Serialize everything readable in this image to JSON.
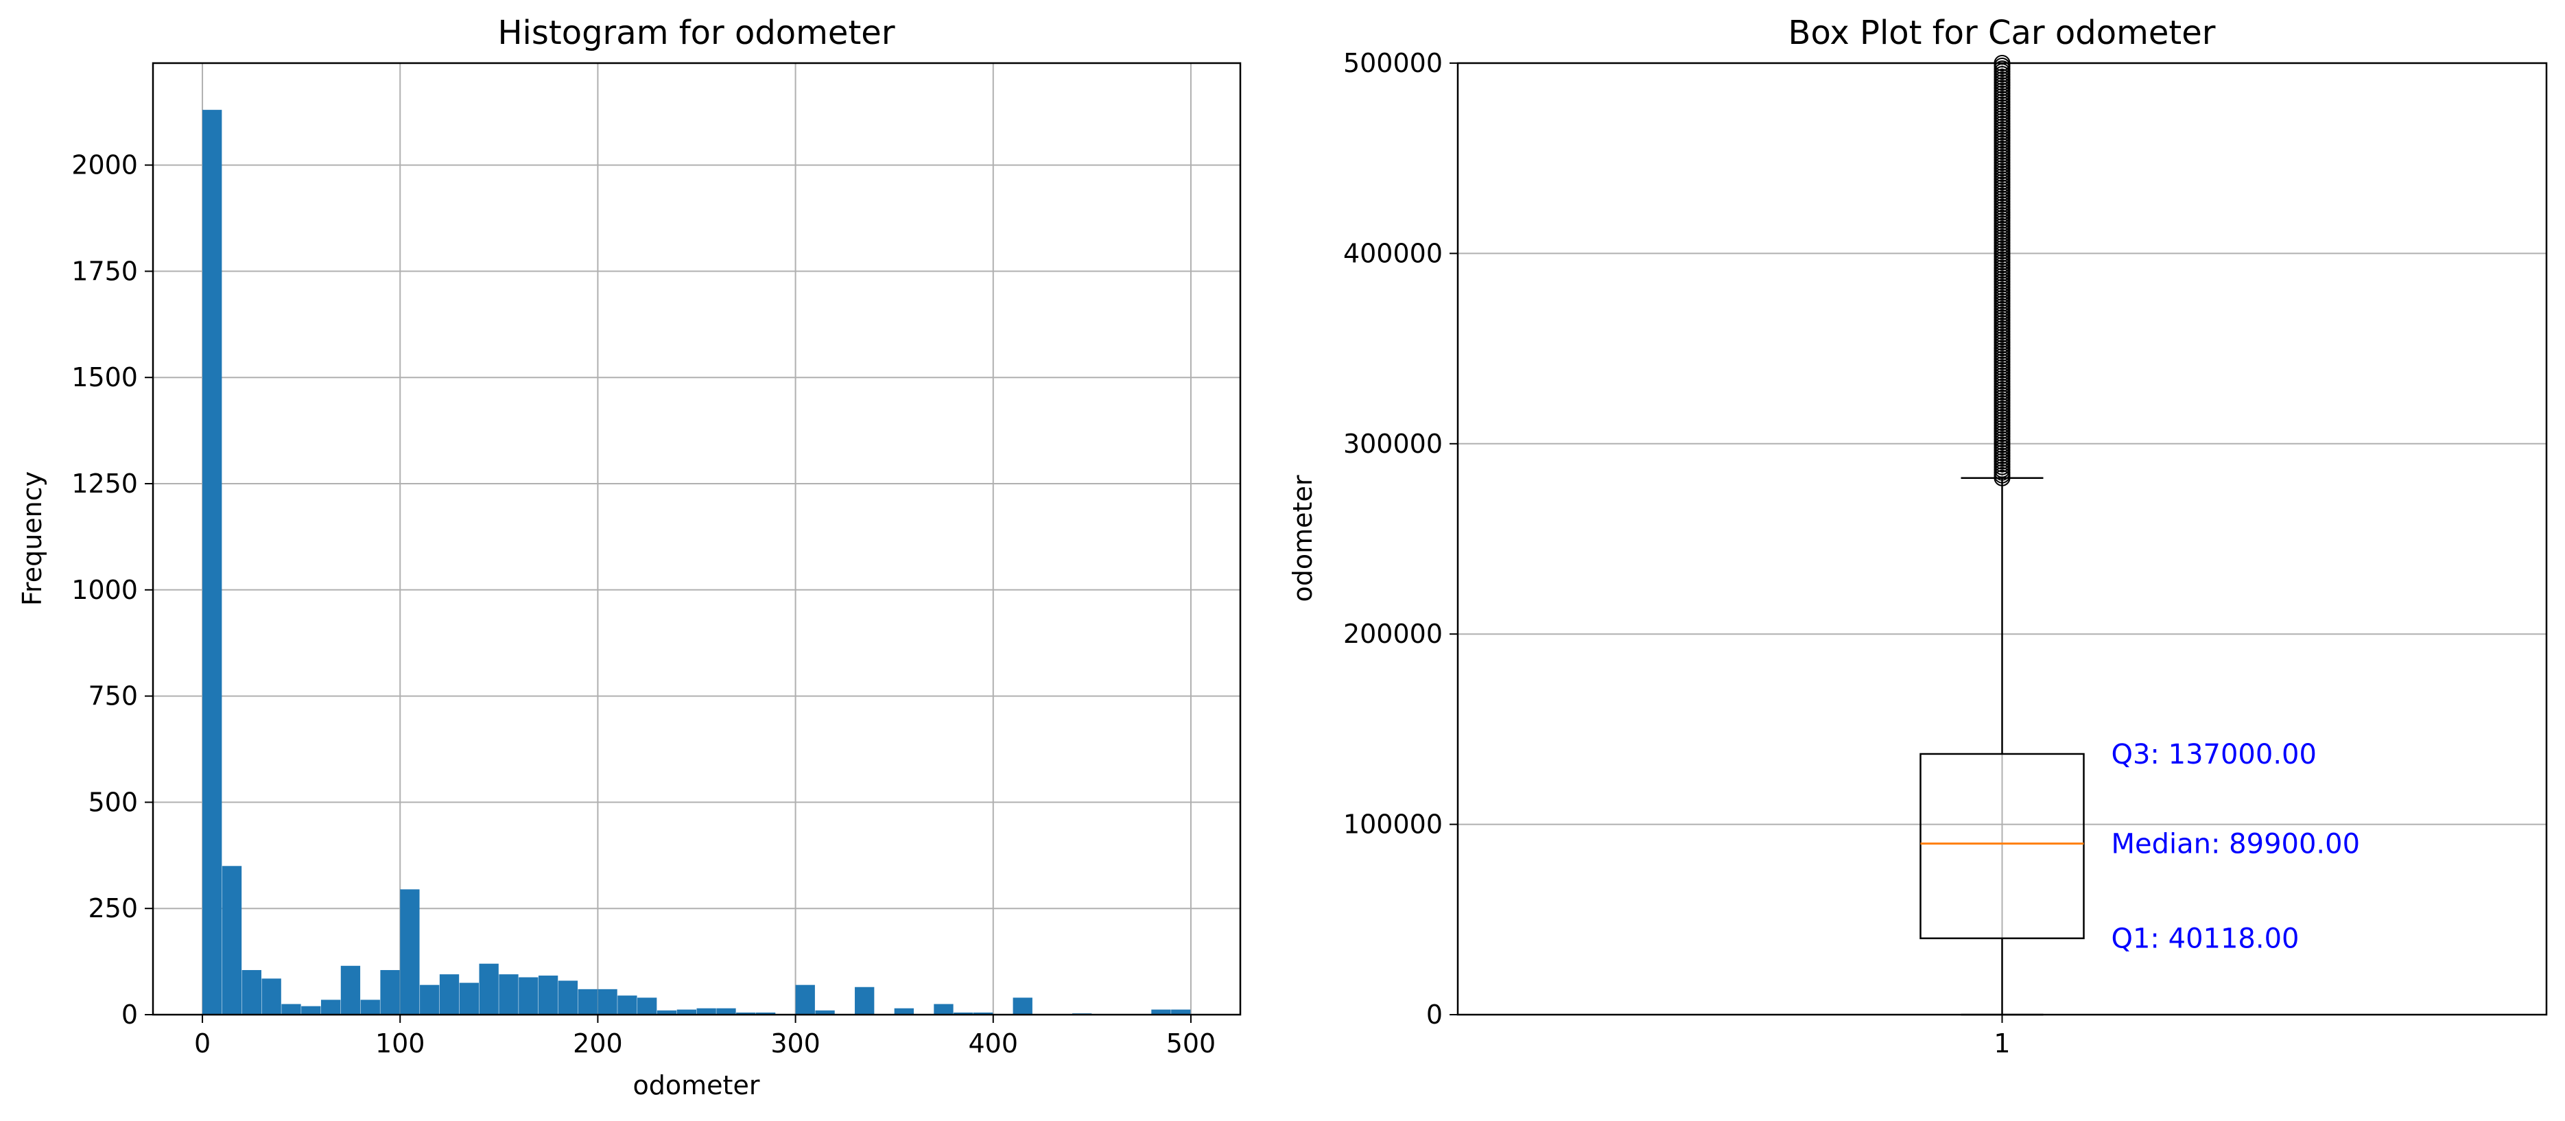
{
  "chart_data": [
    {
      "type": "bar",
      "chart_kind": "histogram",
      "title": "Histogram for odometer",
      "xlabel": "odometer",
      "ylabel": "Frequency",
      "xlim": [
        -25,
        525
      ],
      "ylim": [
        0,
        2240
      ],
      "xticks": [
        0,
        100,
        200,
        300,
        400,
        500
      ],
      "yticks": [
        0,
        250,
        500,
        750,
        1000,
        1250,
        1500,
        1750,
        2000
      ],
      "grid": true,
      "bar_color": "#1f77b4",
      "bin_start": 0,
      "bin_width": 10,
      "values": [
        2130,
        350,
        105,
        85,
        25,
        20,
        35,
        115,
        35,
        105,
        295,
        70,
        95,
        75,
        120,
        95,
        88,
        92,
        80,
        60,
        60,
        45,
        40,
        10,
        12,
        15,
        15,
        5,
        5,
        0,
        70,
        10,
        0,
        65,
        0,
        15,
        0,
        25,
        5,
        5,
        0,
        40,
        0,
        0,
        3,
        0,
        0,
        0,
        12,
        12
      ]
    },
    {
      "type": "box",
      "title": "Box Plot for Car odometer",
      "xlabel": "",
      "ylabel": "odometer",
      "ylim": [
        0,
        500000
      ],
      "yticks": [
        0,
        100000,
        200000,
        300000,
        400000,
        500000
      ],
      "xticks": [
        "1"
      ],
      "grid": true,
      "grid_axis": "y",
      "box": {
        "min": 0,
        "q1": 40118,
        "median": 89900,
        "q3": 137000,
        "whisker_low": 0,
        "whisker_high": 282000,
        "outliers_from": 282000,
        "outliers_to": 500000
      },
      "median_color": "#ff7f0e",
      "annotation_color": "#0000ff",
      "annotations": {
        "q3": "Q3: 137000.00",
        "median": "Median: 89900.00",
        "q1": "Q1: 40118.00"
      }
    }
  ]
}
